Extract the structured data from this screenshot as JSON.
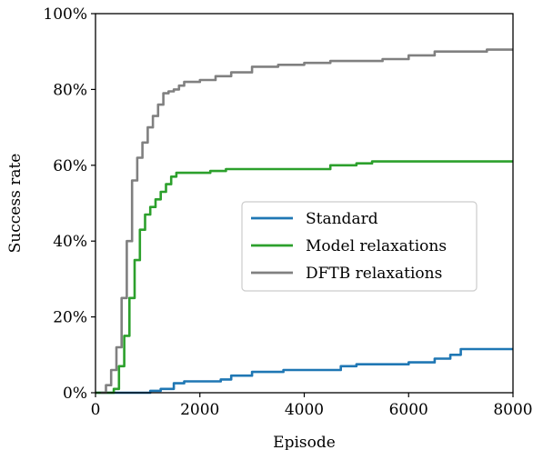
{
  "chart_data": {
    "type": "line",
    "xlabel": "Episode",
    "ylabel": "Success rate",
    "xlim": [
      0,
      8000
    ],
    "ylim": [
      0,
      100
    ],
    "x_ticks": [
      0,
      2000,
      4000,
      6000,
      8000
    ],
    "y_ticks": [
      0,
      20,
      40,
      60,
      80,
      100
    ],
    "y_tick_suffix": "%",
    "grid": false,
    "legend_position": "center-right",
    "series": [
      {
        "name": "Standard",
        "color": "#1f77b4",
        "x": [
          0,
          900,
          1050,
          1250,
          1500,
          1700,
          2000,
          2400,
          2600,
          3000,
          3300,
          3600,
          4000,
          4500,
          4700,
          5000,
          5500,
          6000,
          6500,
          6800,
          7000,
          7500,
          8000
        ],
        "y": [
          0,
          0,
          0.5,
          1,
          2.5,
          3,
          3,
          3.5,
          4.5,
          5.5,
          5.5,
          6,
          6,
          6,
          7,
          7.5,
          7.5,
          8,
          9,
          10,
          11.5,
          11.5,
          11.5
        ]
      },
      {
        "name": "Model relaxations",
        "color": "#2ca02c",
        "x": [
          0,
          200,
          350,
          450,
          550,
          650,
          750,
          850,
          950,
          1050,
          1150,
          1250,
          1350,
          1450,
          1550,
          1700,
          2000,
          2200,
          2500,
          3000,
          3500,
          4000,
          4500,
          5000,
          5300,
          5500,
          6000,
          7000,
          8000
        ],
        "y": [
          0,
          0,
          1,
          7,
          15,
          25,
          35,
          43,
          47,
          49,
          51,
          53,
          55,
          57,
          58,
          58,
          58,
          58.5,
          59,
          59,
          59,
          59,
          60,
          60.5,
          61,
          61,
          61,
          61,
          61
        ]
      },
      {
        "name": "DFTB relaxations",
        "color": "#808080",
        "x": [
          100,
          200,
          300,
          400,
          500,
          600,
          700,
          800,
          900,
          1000,
          1100,
          1200,
          1300,
          1400,
          1500,
          1600,
          1700,
          2000,
          2300,
          2600,
          3000,
          3500,
          4000,
          4500,
          5000,
          5500,
          6000,
          6500,
          7000,
          7500,
          8000
        ],
        "y": [
          0,
          2,
          6,
          12,
          25,
          40,
          56,
          62,
          66,
          70,
          73,
          76,
          79,
          79.5,
          80,
          81,
          82,
          82.5,
          83.5,
          84.5,
          86,
          86.5,
          87,
          87.5,
          87.5,
          88,
          89,
          90,
          90,
          90.5,
          90.5
        ]
      }
    ]
  }
}
